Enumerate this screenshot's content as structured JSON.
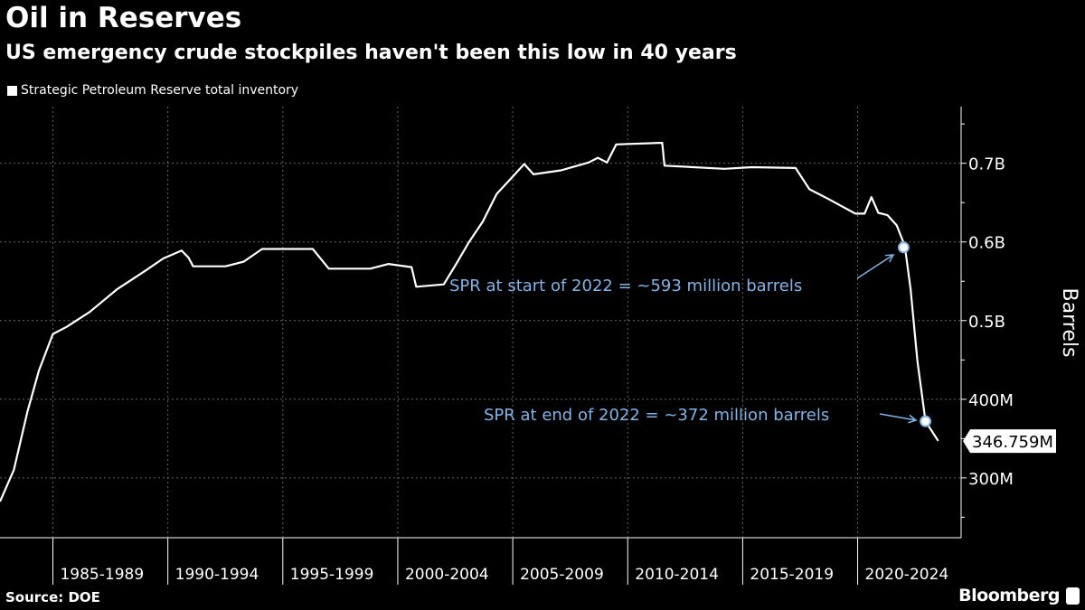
{
  "header": {
    "title": "Oil in Reserves",
    "subtitle": "US emergency crude stockpiles haven't been this low in 40 years"
  },
  "footer": {
    "source": "Source: DOE",
    "brand": "Bloomberg"
  },
  "chart_data": {
    "type": "line",
    "title": "Oil in Reserves",
    "subtitle": "US emergency crude stockpiles haven't been this low in 40 years",
    "ylabel": "Barrels",
    "xlabel": "",
    "ylim": [
      224,
      772
    ],
    "xlim": [
      1982.7,
      2024.5
    ],
    "grid": true,
    "legend_position": "top-left",
    "y_ticks": [
      {
        "value": 300,
        "label": "300M"
      },
      {
        "value": 400,
        "label": "400M"
      },
      {
        "value": 500,
        "label": "0.5B"
      },
      {
        "value": 600,
        "label": "0.6B"
      },
      {
        "value": 700,
        "label": "0.7B"
      }
    ],
    "x_categories": [
      {
        "start": 1985,
        "label": "1985-1989"
      },
      {
        "start": 1990,
        "label": "1990-1994"
      },
      {
        "start": 1995,
        "label": "1995-1999"
      },
      {
        "start": 2000,
        "label": "2000-2004"
      },
      {
        "start": 2005,
        "label": "2005-2009"
      },
      {
        "start": 2010,
        "label": "2010-2014"
      },
      {
        "start": 2015,
        "label": "2015-2019"
      },
      {
        "start": 2020,
        "label": "2020-2024"
      }
    ],
    "series": [
      {
        "name": "Strategic Petroleum Reserve total inventory",
        "color": "#ffffff",
        "unit": "million barrels",
        "x": [
          1982.7,
          1983.3,
          1983.9,
          1984.4,
          1985.0,
          1985.6,
          1986.6,
          1987.8,
          1989.0,
          1989.8,
          1990.6,
          1990.9,
          1991.1,
          1992.5,
          1993.3,
          1994.1,
          1996.3,
          1997.0,
          1998.8,
          1999.6,
          2000.6,
          2000.8,
          2002.0,
          2002.6,
          2003.1,
          2003.7,
          2004.3,
          2004.9,
          2005.5,
          2005.9,
          2007.1,
          2008.3,
          2008.7,
          2009.1,
          2009.5,
          2011.5,
          2011.6,
          2014.2,
          2015.4,
          2017.3,
          2017.9,
          2018.7,
          2019.9,
          2020.3,
          2020.6,
          2020.9,
          2021.3,
          2021.7,
          2022.05,
          2022.3,
          2022.6,
          2022.95,
          2023.5
        ],
        "y": [
          270,
          310,
          385,
          437,
          483,
          492,
          511,
          540,
          563,
          579,
          589,
          580,
          569,
          569,
          575,
          591,
          591,
          566,
          566,
          572,
          568,
          543,
          546,
          575,
          600,
          626,
          661,
          680,
          699,
          686,
          691,
          701,
          707,
          701,
          724,
          726,
          697,
          693,
          695,
          694,
          667,
          655,
          636,
          636,
          657,
          637,
          634,
          621,
          595,
          540,
          448,
          372,
          347
        ]
      }
    ],
    "last_value_label": {
      "value": 346.759,
      "label": "346.759M"
    },
    "annotations": [
      {
        "x": 2022.0,
        "y": 593,
        "text": "SPR at start of 2022 = ~593 million barrels",
        "color": "#7fb4e8"
      },
      {
        "x": 2022.95,
        "y": 372,
        "text": "SPR at end of 2022 = ~372 million barrels",
        "color": "#7fb4e8"
      }
    ]
  }
}
